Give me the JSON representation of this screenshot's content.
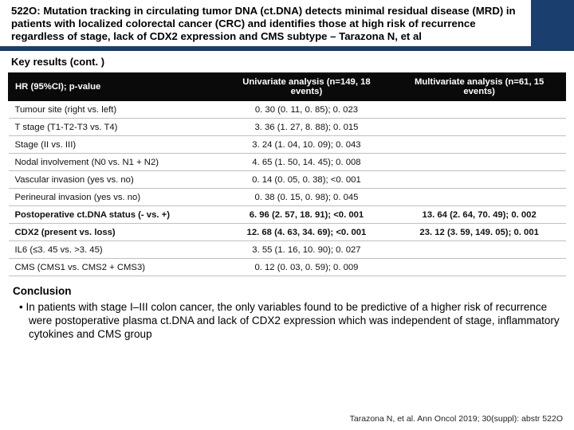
{
  "title": "522O: Mutation tracking in circulating tumor DNA (ct.DNA) detects minimal residual disease (MRD) in patients with localized colorectal cancer (CRC) and identifies those at high risk of recurrence regardless of stage, lack of CDX2 expression and CMS subtype – Tarazona N, et al",
  "section_label": "Key results (cont. )",
  "table": {
    "headers": {
      "c0": "HR (95%CI); p-value",
      "c1": "Univariate analysis (n=149, 18 events)",
      "c2": "Multivariate analysis (n=61, 15 events)"
    },
    "rows": [
      {
        "bold": false,
        "c0": "Tumour site (right vs. left)",
        "c1": "0. 30 (0. 11, 0. 85); 0. 023",
        "c2": ""
      },
      {
        "bold": false,
        "c0": "T stage (T1-T2-T3 vs. T4)",
        "c1": "3. 36 (1. 27, 8. 88); 0. 015",
        "c2": ""
      },
      {
        "bold": false,
        "c0": "Stage (II vs. III)",
        "c1": "3. 24 (1. 04, 10. 09); 0. 043",
        "c2": ""
      },
      {
        "bold": false,
        "c0": "Nodal involvement (N0 vs. N1 + N2)",
        "c1": "4. 65 (1. 50, 14. 45); 0. 008",
        "c2": ""
      },
      {
        "bold": false,
        "c0": "Vascular invasion (yes vs. no)",
        "c1": "0. 14 (0. 05, 0. 38); <0. 001",
        "c2": ""
      },
      {
        "bold": false,
        "c0": "Perineural invasion (yes vs. no)",
        "c1": "0. 38 (0. 15, 0. 98); 0. 045",
        "c2": ""
      },
      {
        "bold": true,
        "c0": "Postoperative ct.DNA status (- vs. +)",
        "c1": "6. 96 (2. 57, 18. 91); <0. 001",
        "c2": "13. 64 (2. 64, 70. 49); 0. 002"
      },
      {
        "bold": true,
        "c0": "CDX2 (present vs. loss)",
        "c1": "12. 68 (4. 63, 34. 69); <0. 001",
        "c2": "23. 12 (3. 59, 149. 05); 0. 001"
      },
      {
        "bold": false,
        "c0": "IL6 (≤3. 45 vs. >3. 45)",
        "c1": "3. 55 (1. 16, 10. 90); 0. 027",
        "c2": ""
      },
      {
        "bold": false,
        "c0": "CMS (CMS1 vs. CMS2 + CMS3)",
        "c1": "0. 12 (0. 03, 0. 59); 0. 009",
        "c2": ""
      }
    ]
  },
  "conclusion": {
    "heading": "Conclusion",
    "bullet": "In patients with stage I–III colon cancer, the only variables found to be predictive of a higher risk of recurrence were postoperative plasma ct.DNA and lack of CDX2 expression which was independent of stage, inflammatory cytokines and CMS group"
  },
  "citation": "Tarazona N, et al. Ann Oncol 2019; 30(suppl): abstr 522O",
  "colors": {
    "header_blue": "#1a3e6e",
    "table_header_bg": "#0a0a0a",
    "table_header_fg": "#ffffff",
    "row_border": "#bfbfbf",
    "background": "#ffffff"
  }
}
